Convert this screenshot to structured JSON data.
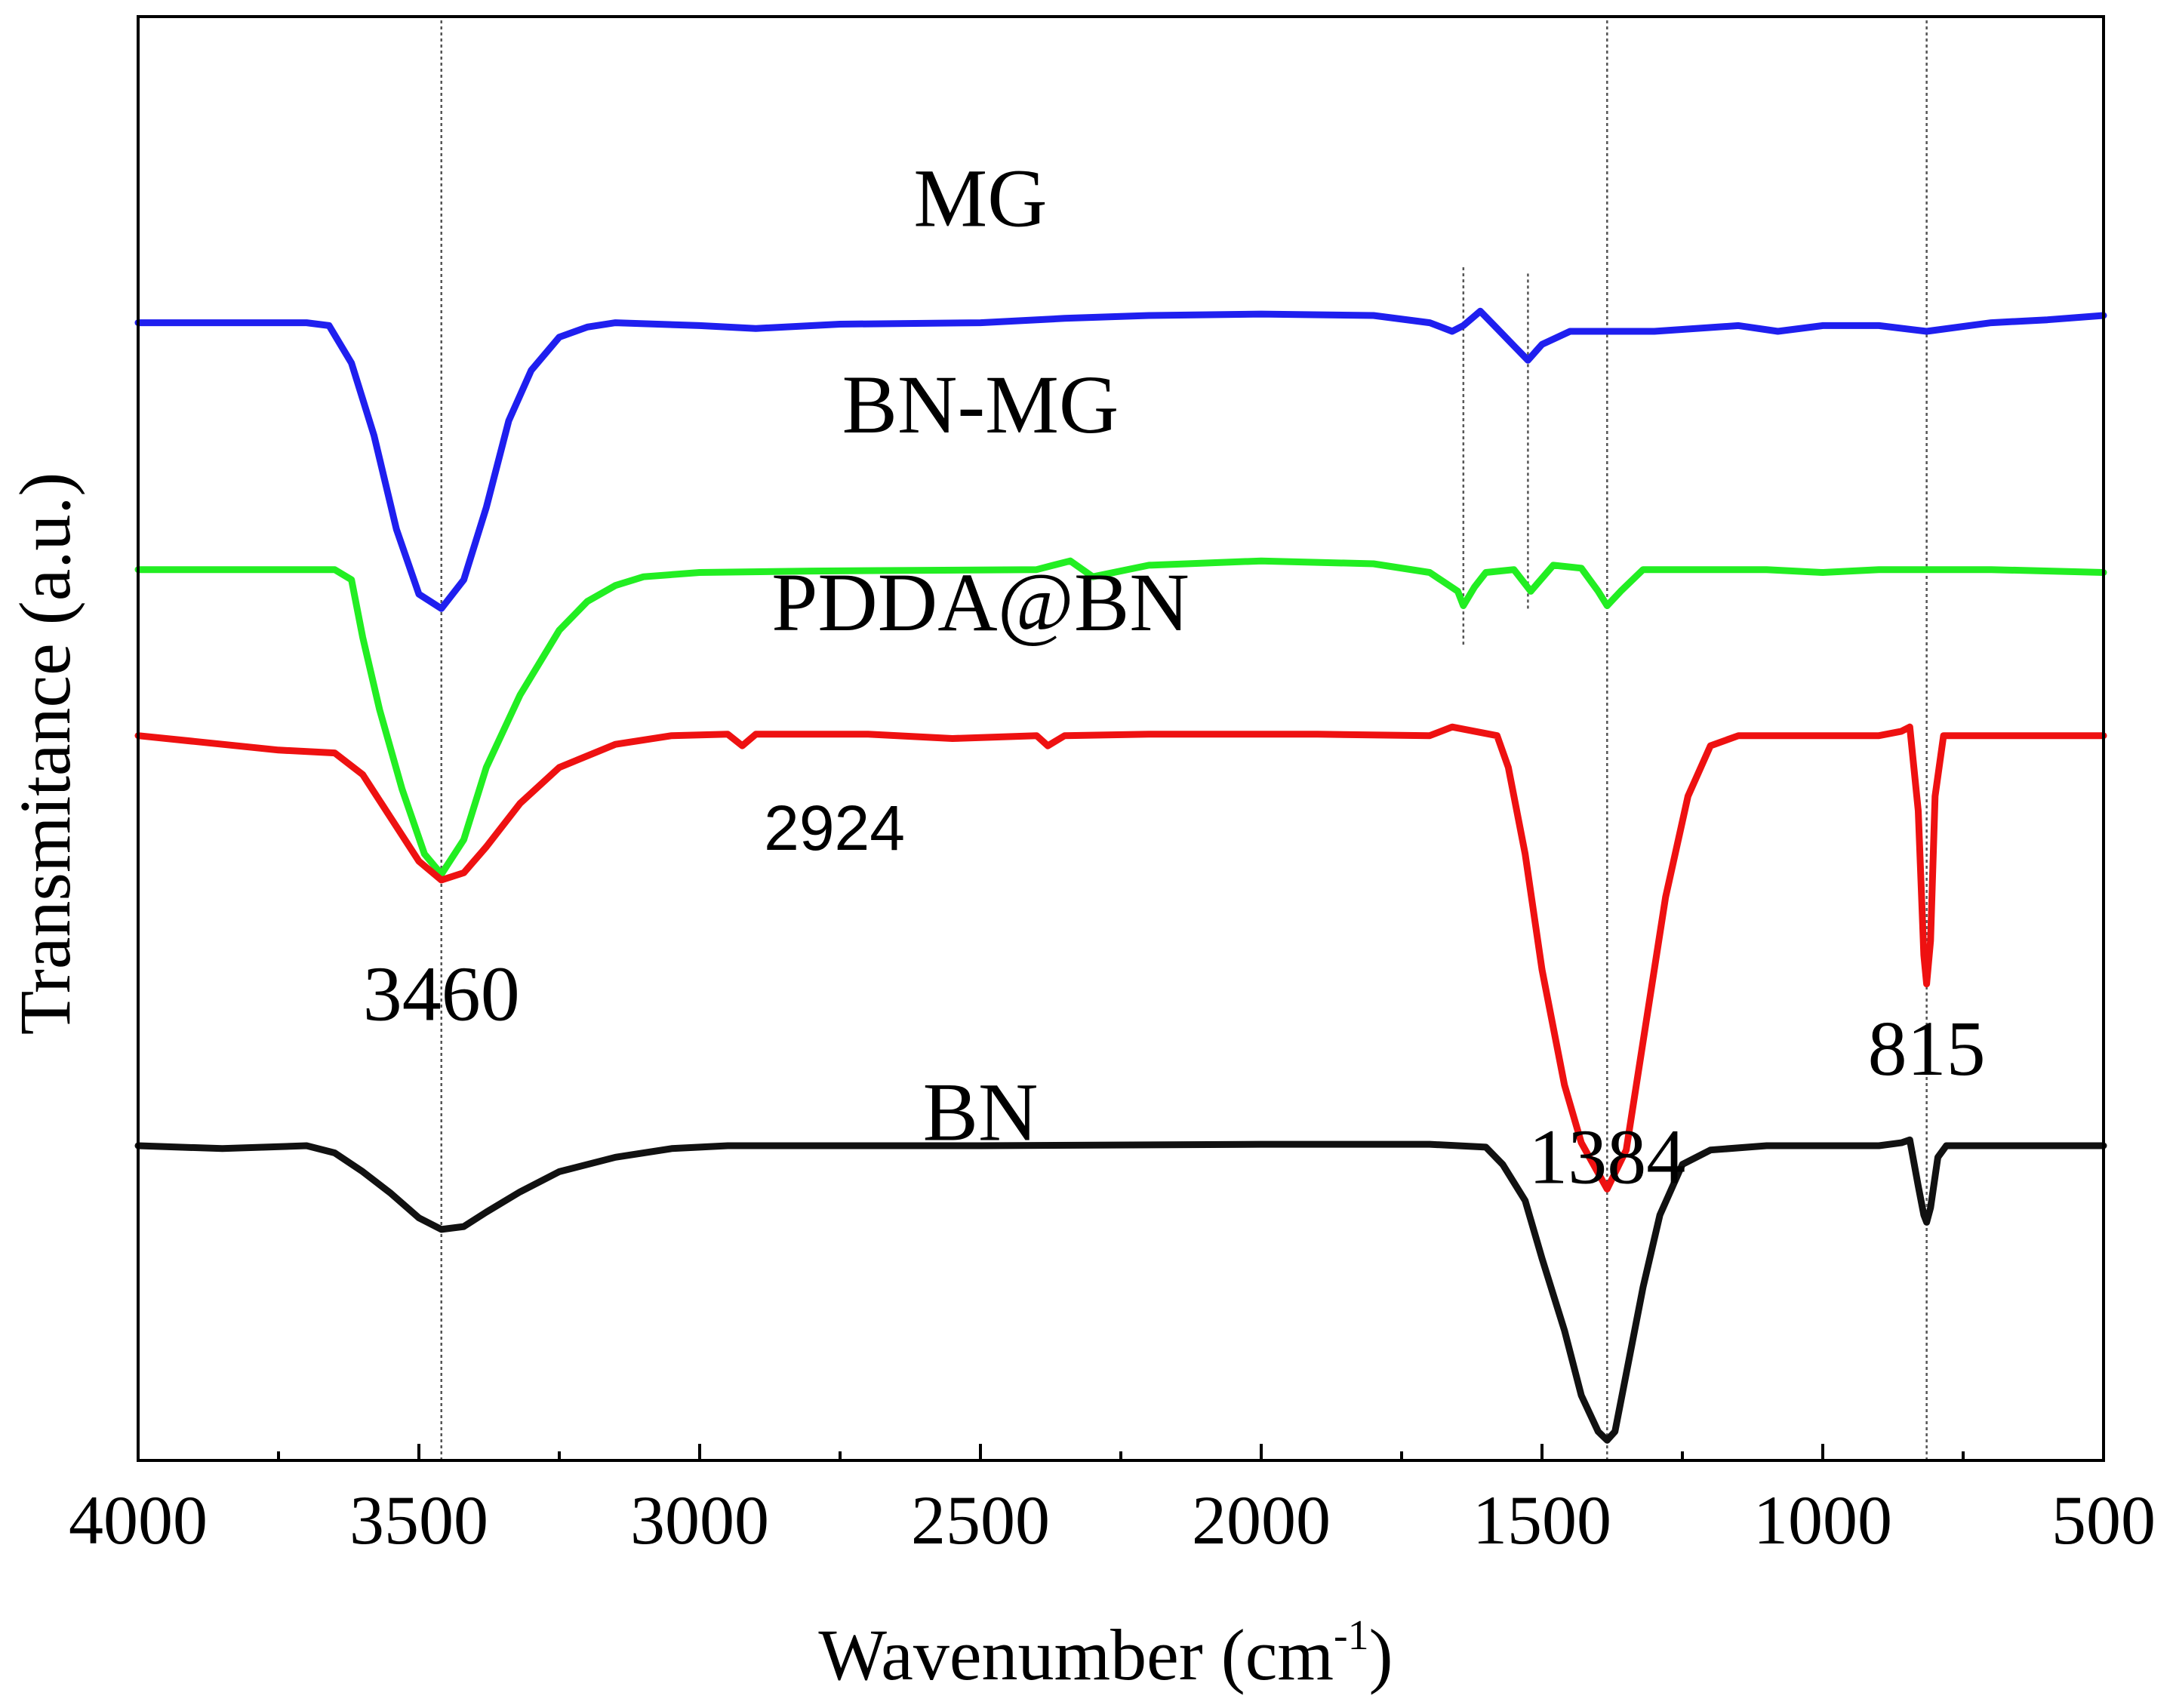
{
  "chart_data": {
    "type": "line",
    "title": "",
    "xlabel_main": "Wavenumber (cm",
    "xlabel_sup": "-1",
    "xlabel_close": ")",
    "ylabel": "Transmitance (a.u.)",
    "xlim": [
      4000,
      500
    ],
    "ylim": [
      0,
      10
    ],
    "x_ticks": [
      4000,
      3500,
      3000,
      2500,
      2000,
      1500,
      1000,
      500
    ],
    "x_tick_labels": [
      "4000",
      "3500",
      "3000",
      "2500",
      "2000",
      "1500",
      "1000",
      "500"
    ],
    "y_ticks_shown": false,
    "series": [
      {
        "name": "MG",
        "color": "#1f1fef",
        "label_at": [
          2500,
          8.55
        ],
        "points": [
          [
            4000,
            7.88
          ],
          [
            3700,
            7.88
          ],
          [
            3660,
            7.86
          ],
          [
            3620,
            7.6
          ],
          [
            3580,
            7.1
          ],
          [
            3540,
            6.45
          ],
          [
            3500,
            6.0
          ],
          [
            3460,
            5.9
          ],
          [
            3420,
            6.1
          ],
          [
            3380,
            6.6
          ],
          [
            3340,
            7.2
          ],
          [
            3300,
            7.55
          ],
          [
            3250,
            7.78
          ],
          [
            3200,
            7.85
          ],
          [
            3150,
            7.88
          ],
          [
            3000,
            7.86
          ],
          [
            2900,
            7.84
          ],
          [
            2750,
            7.87
          ],
          [
            2500,
            7.88
          ],
          [
            2350,
            7.91
          ],
          [
            2200,
            7.93
          ],
          [
            2000,
            7.94
          ],
          [
            1800,
            7.93
          ],
          [
            1700,
            7.88
          ],
          [
            1660,
            7.82
          ],
          [
            1640,
            7.86
          ],
          [
            1610,
            7.96
          ],
          [
            1580,
            7.84
          ],
          [
            1550,
            7.72
          ],
          [
            1525,
            7.62
          ],
          [
            1500,
            7.73
          ],
          [
            1450,
            7.82
          ],
          [
            1300,
            7.82
          ],
          [
            1150,
            7.86
          ],
          [
            1080,
            7.82
          ],
          [
            1000,
            7.86
          ],
          [
            900,
            7.86
          ],
          [
            815,
            7.82
          ],
          [
            700,
            7.88
          ],
          [
            600,
            7.9
          ],
          [
            500,
            7.93
          ]
        ]
      },
      {
        "name": "BN-MG",
        "color": "#22ee22",
        "label_at": [
          2500,
          7.12
        ],
        "points": [
          [
            4000,
            6.17
          ],
          [
            3650,
            6.17
          ],
          [
            3620,
            6.1
          ],
          [
            3600,
            5.7
          ],
          [
            3570,
            5.2
          ],
          [
            3530,
            4.65
          ],
          [
            3490,
            4.2
          ],
          [
            3460,
            4.06
          ],
          [
            3420,
            4.3
          ],
          [
            3380,
            4.8
          ],
          [
            3320,
            5.3
          ],
          [
            3250,
            5.75
          ],
          [
            3200,
            5.95
          ],
          [
            3150,
            6.06
          ],
          [
            3100,
            6.12
          ],
          [
            3000,
            6.15
          ],
          [
            2800,
            6.16
          ],
          [
            2400,
            6.17
          ],
          [
            2370,
            6.2
          ],
          [
            2340,
            6.23
          ],
          [
            2300,
            6.12
          ],
          [
            2200,
            6.2
          ],
          [
            2000,
            6.23
          ],
          [
            1800,
            6.21
          ],
          [
            1700,
            6.15
          ],
          [
            1650,
            6.02
          ],
          [
            1640,
            5.92
          ],
          [
            1620,
            6.05
          ],
          [
            1600,
            6.15
          ],
          [
            1550,
            6.17
          ],
          [
            1520,
            6.02
          ],
          [
            1480,
            6.2
          ],
          [
            1430,
            6.18
          ],
          [
            1400,
            6.02
          ],
          [
            1384,
            5.92
          ],
          [
            1360,
            6.02
          ],
          [
            1320,
            6.17
          ],
          [
            1100,
            6.17
          ],
          [
            1000,
            6.15
          ],
          [
            900,
            6.17
          ],
          [
            700,
            6.17
          ],
          [
            500,
            6.15
          ]
        ]
      },
      {
        "name": "PDDA@BN",
        "color": "#ee1111",
        "label_at": [
          2500,
          5.75
        ],
        "points": [
          [
            4000,
            5.02
          ],
          [
            3900,
            4.98
          ],
          [
            3750,
            4.92
          ],
          [
            3650,
            4.9
          ],
          [
            3600,
            4.75
          ],
          [
            3550,
            4.45
          ],
          [
            3500,
            4.15
          ],
          [
            3460,
            4.02
          ],
          [
            3420,
            4.07
          ],
          [
            3380,
            4.25
          ],
          [
            3320,
            4.55
          ],
          [
            3250,
            4.8
          ],
          [
            3150,
            4.96
          ],
          [
            3050,
            5.02
          ],
          [
            2950,
            5.03
          ],
          [
            2924,
            4.95
          ],
          [
            2900,
            5.03
          ],
          [
            2700,
            5.03
          ],
          [
            2550,
            5.0
          ],
          [
            2400,
            5.02
          ],
          [
            2380,
            4.95
          ],
          [
            2350,
            5.02
          ],
          [
            2200,
            5.03
          ],
          [
            1900,
            5.03
          ],
          [
            1700,
            5.02
          ],
          [
            1660,
            5.08
          ],
          [
            1620,
            5.05
          ],
          [
            1580,
            5.02
          ],
          [
            1560,
            4.8
          ],
          [
            1530,
            4.2
          ],
          [
            1500,
            3.4
          ],
          [
            1460,
            2.6
          ],
          [
            1430,
            2.2
          ],
          [
            1384,
            1.88
          ],
          [
            1350,
            2.15
          ],
          [
            1320,
            2.9
          ],
          [
            1280,
            3.9
          ],
          [
            1240,
            4.6
          ],
          [
            1200,
            4.95
          ],
          [
            1150,
            5.02
          ],
          [
            900,
            5.02
          ],
          [
            860,
            5.05
          ],
          [
            845,
            5.08
          ],
          [
            830,
            4.5
          ],
          [
            820,
            3.5
          ],
          [
            815,
            3.3
          ],
          [
            808,
            3.6
          ],
          [
            800,
            4.6
          ],
          [
            785,
            5.02
          ],
          [
            700,
            5.02
          ],
          [
            500,
            5.02
          ]
        ]
      },
      {
        "name": "BN",
        "color": "#111111",
        "label_at": [
          2500,
          2.22
        ],
        "points": [
          [
            4000,
            2.18
          ],
          [
            3850,
            2.16
          ],
          [
            3700,
            2.18
          ],
          [
            3650,
            2.13
          ],
          [
            3600,
            2.0
          ],
          [
            3550,
            1.85
          ],
          [
            3500,
            1.68
          ],
          [
            3460,
            1.6
          ],
          [
            3420,
            1.62
          ],
          [
            3380,
            1.72
          ],
          [
            3320,
            1.86
          ],
          [
            3250,
            2.0
          ],
          [
            3150,
            2.1
          ],
          [
            3050,
            2.16
          ],
          [
            2950,
            2.18
          ],
          [
            2500,
            2.18
          ],
          [
            2000,
            2.19
          ],
          [
            1700,
            2.19
          ],
          [
            1600,
            2.17
          ],
          [
            1570,
            2.05
          ],
          [
            1530,
            1.8
          ],
          [
            1500,
            1.4
          ],
          [
            1460,
            0.9
          ],
          [
            1430,
            0.45
          ],
          [
            1400,
            0.2
          ],
          [
            1384,
            0.14
          ],
          [
            1370,
            0.2
          ],
          [
            1350,
            0.6
          ],
          [
            1320,
            1.2
          ],
          [
            1290,
            1.7
          ],
          [
            1250,
            2.05
          ],
          [
            1200,
            2.15
          ],
          [
            1100,
            2.18
          ],
          [
            900,
            2.18
          ],
          [
            860,
            2.2
          ],
          [
            845,
            2.22
          ],
          [
            830,
            1.9
          ],
          [
            820,
            1.7
          ],
          [
            815,
            1.65
          ],
          [
            808,
            1.75
          ],
          [
            795,
            2.1
          ],
          [
            780,
            2.18
          ],
          [
            650,
            2.18
          ],
          [
            500,
            2.18
          ]
        ]
      }
    ],
    "reference_lines": [
      {
        "x": 3460,
        "y_from": 0.0,
        "y_to": 10.0
      },
      {
        "x": 1384,
        "y_from": 0.0,
        "y_to": 10.0
      },
      {
        "x": 815,
        "y_from": 0.0,
        "y_to": 10.0
      },
      {
        "x": 1640,
        "y_from": 5.65,
        "y_to": 8.28
      },
      {
        "x": 1525,
        "y_from": 5.9,
        "y_to": 8.22
      }
    ],
    "annotations": [
      {
        "text": "3460",
        "x": 3460,
        "y": 3.05,
        "style": "serif"
      },
      {
        "text": "2924",
        "x": 2760,
        "y": 4.23,
        "style": "sans"
      },
      {
        "text": "1384",
        "x": 1384,
        "y": 1.92,
        "style": "serif"
      },
      {
        "text": "815",
        "x": 815,
        "y": 2.67,
        "style": "serif"
      }
    ]
  }
}
